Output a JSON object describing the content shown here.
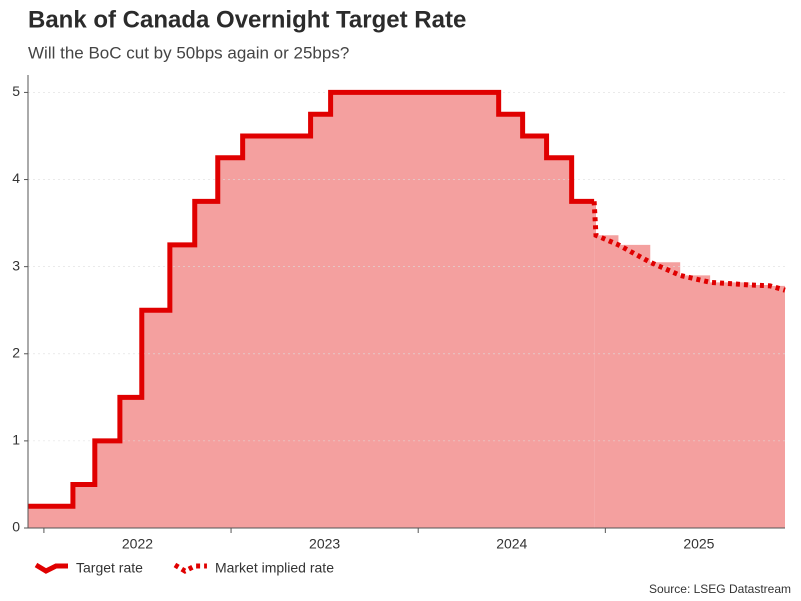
{
  "chart_data": {
    "type": "line",
    "title": "Bank of Canada Overnight Target Rate",
    "subtitle": "Will the BoC cut by 50bps again or 25bps?",
    "source": "Source: LSEG Datastream",
    "step": true,
    "area": true,
    "grid": true,
    "legend": "bottom-left",
    "xlim": [
      2021.915,
      2025.96
    ],
    "ylim": [
      0,
      5.2
    ],
    "xticks": [
      {
        "value": 2022,
        "label": "2022"
      },
      {
        "value": 2023,
        "label": "2023"
      },
      {
        "value": 2024,
        "label": "2024"
      },
      {
        "value": 2025,
        "label": "2025"
      }
    ],
    "yticks": [
      0,
      1,
      2,
      3,
      4,
      5
    ],
    "series": [
      {
        "name": "Target rate",
        "color": "#e00000",
        "style": "solid",
        "fill": "#f4a09f",
        "x": [
          2021.915,
          2022.155,
          2022.272,
          2022.406,
          2022.523,
          2022.673,
          2022.806,
          2022.929,
          2023.062,
          2023.425,
          2023.532,
          2024.43,
          2024.558,
          2024.686,
          2024.82,
          2024.94
        ],
        "values": [
          0.25,
          0.5,
          1.0,
          1.5,
          2.5,
          3.25,
          3.75,
          4.25,
          4.5,
          4.75,
          5.0,
          4.75,
          4.5,
          4.25,
          3.75,
          3.75
        ]
      },
      {
        "name": "Market implied rate",
        "color": "#e00000",
        "style": "dotted",
        "fill": "#f4a09f",
        "x": [
          2024.94,
          2024.95,
          2025.07,
          2025.24,
          2025.4,
          2025.56,
          2025.77,
          2025.88,
          2025.96
        ],
        "values": [
          3.75,
          3.36,
          3.25,
          3.05,
          2.9,
          2.82,
          2.79,
          2.78,
          2.73
        ]
      }
    ]
  }
}
